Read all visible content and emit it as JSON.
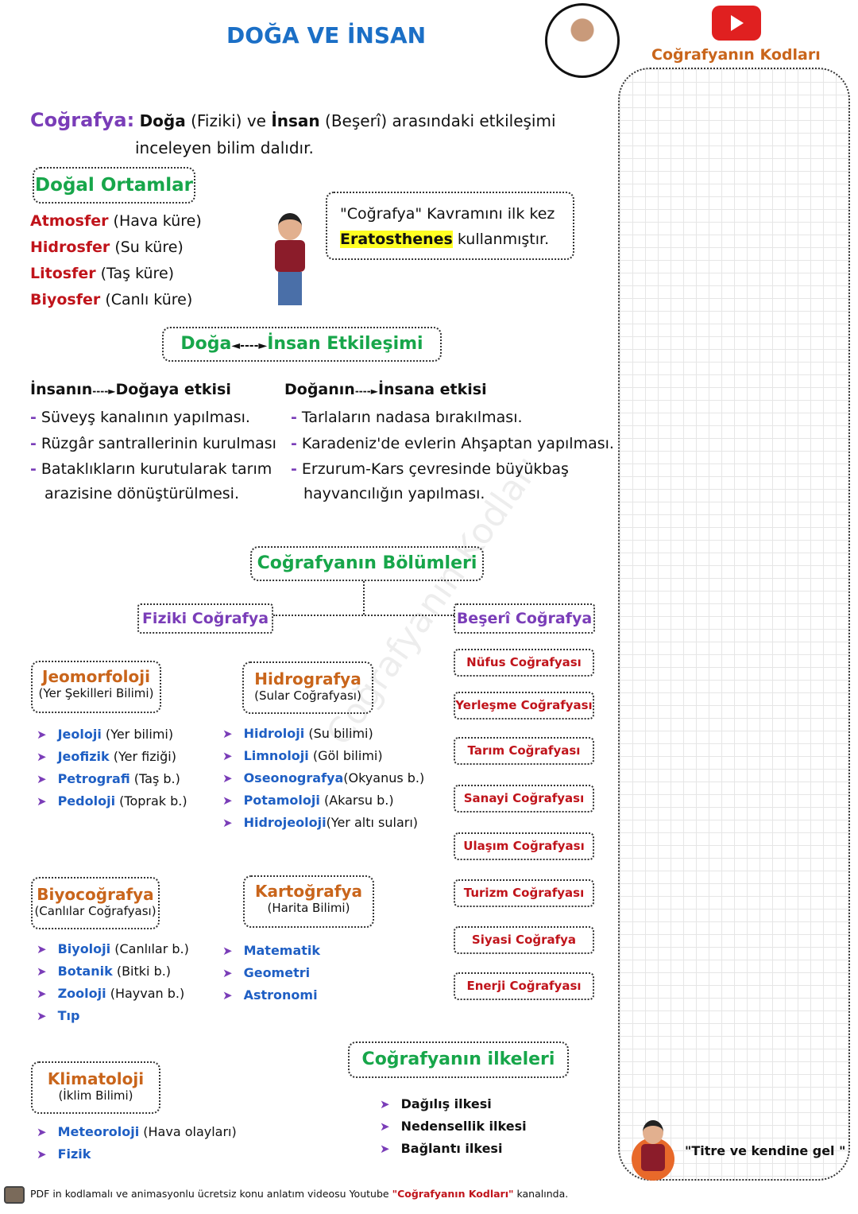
{
  "title": "DOĞA VE İNSAN",
  "brand": {
    "channel": "Coğrafyanın Kodları",
    "youtube_icon": "youtube-play-icon",
    "quote": "\"Titre ve kendine gel \""
  },
  "definition": {
    "term": "Coğrafya:",
    "w1": "Doğa",
    "w2": " (Fiziki) ve ",
    "w3": "İnsan",
    "w4": " (Beşerî) arasındaki etkileşimi",
    "line2": "inceleyen bilim dalıdır."
  },
  "natural": {
    "title": "Doğal Ortamlar",
    "items": [
      {
        "name": "Atmosfer",
        "desc": "(Hava küre)"
      },
      {
        "name": "Hidrosfer",
        "desc": "(Su küre)"
      },
      {
        "name": "Litosfer",
        "desc": "(Taş küre)"
      },
      {
        "name": "Biyosfer",
        "desc": "(Canlı küre)"
      }
    ]
  },
  "callout": {
    "line1": "\"Coğrafya\" Kavramını ilk kez",
    "highlight": "Eratosthenes",
    "rest": "kullanmıştır."
  },
  "interaction": {
    "left": "Doğa",
    "right": "İnsan Etkileşimi"
  },
  "human_effect": {
    "from": "İnsanın",
    "to": "Doğaya etkisi",
    "items": [
      "Süveyş kanalının yapılması.",
      "Rüzgâr santrallerinin kurulması",
      "Bataklıkların kurutularak tarım",
      "arazisine dönüştürülmesi."
    ]
  },
  "nature_effect": {
    "from": "Doğanın",
    "to": "İnsana etkisi",
    "items": [
      "Tarlaların nadasa bırakılması.",
      "Karadeniz'de evlerin Ahşaptan yapılması.",
      "Erzurum-Kars çevresinde büyükbaş",
      "hayvancılığın yapılması."
    ]
  },
  "sections": {
    "title": "Coğrafyanın Bölümleri",
    "physical": "Fiziki Coğrafya",
    "human": "Beşerî Coğrafya"
  },
  "jeomorfoloji": {
    "title": "Jeomorfoloji",
    "sub": "(Yer Şekilleri Bilimi)",
    "items": [
      {
        "n": "Jeoloji",
        "d": "(Yer bilimi)"
      },
      {
        "n": "Jeofizik",
        "d": "(Yer fiziği)"
      },
      {
        "n": "Petrografi",
        "d": "(Taş b.)"
      },
      {
        "n": "Pedoloji",
        "d": "(Toprak b.)"
      }
    ]
  },
  "hidrografya": {
    "title": "Hidrografya",
    "sub": "(Sular Coğrafyası)",
    "items": [
      {
        "n": "Hidroloji",
        "d": "(Su bilimi)"
      },
      {
        "n": "Limnoloji",
        "d": "(Göl bilimi)"
      },
      {
        "n": "Oseonografya",
        "d": "(Okyanus b.)"
      },
      {
        "n": "Potamoloji",
        "d": "(Akarsu b.)"
      },
      {
        "n": "Hidrojeoloji",
        "d": "(Yer altı suları)"
      }
    ]
  },
  "biyocografya": {
    "title": "Biyocoğrafya",
    "sub": "(Canlılar Coğrafyası)",
    "items": [
      {
        "n": "Biyoloji",
        "d": "(Canlılar b.)"
      },
      {
        "n": "Botanik",
        "d": "(Bitki b.)"
      },
      {
        "n": "Zooloji",
        "d": "(Hayvan b.)"
      },
      {
        "n": "Tıp",
        "d": ""
      }
    ]
  },
  "kartografya": {
    "title": "Kartoğrafya",
    "sub": "(Harita Bilimi)",
    "items": [
      "Matematik",
      "Geometri",
      "Astronomi"
    ]
  },
  "klimatoloji": {
    "title": "Klimatoloji",
    "sub": "(İklim Bilimi)",
    "items": [
      {
        "n": "Meteoroloji",
        "d": "(Hava olayları)"
      },
      {
        "n": "Fizik",
        "d": ""
      }
    ]
  },
  "human_branches": [
    "Nüfus Coğrafyası",
    "Yerleşme Coğrafyası",
    "Tarım Coğrafyası",
    "Sanayi Coğrafyası",
    "Ulaşım Coğrafyası",
    "Turizm Coğrafyası",
    "Siyasi Coğrafya",
    "Enerji Coğrafyası"
  ],
  "principles": {
    "title": "Coğrafyanın ilkeleri",
    "items": [
      "Dağılış ilkesi",
      "Nedensellik ilkesi",
      "Bağlantı ilkesi"
    ]
  },
  "footer": {
    "pre": "PDF in kodlamalı ve animasyonlu ücretsiz konu anlatım videosu Youtube ",
    "channel": "\"Coğrafyanın Kodları\"",
    "post": " kanalında."
  },
  "watermark": "Coğrafyanın Kodları",
  "colors": {
    "title": "#1b6fc6",
    "accent_purple": "#7a3db8",
    "green": "#17a64a",
    "red": "#c0141b",
    "orange": "#c9651b",
    "youtube": "#e02020"
  }
}
